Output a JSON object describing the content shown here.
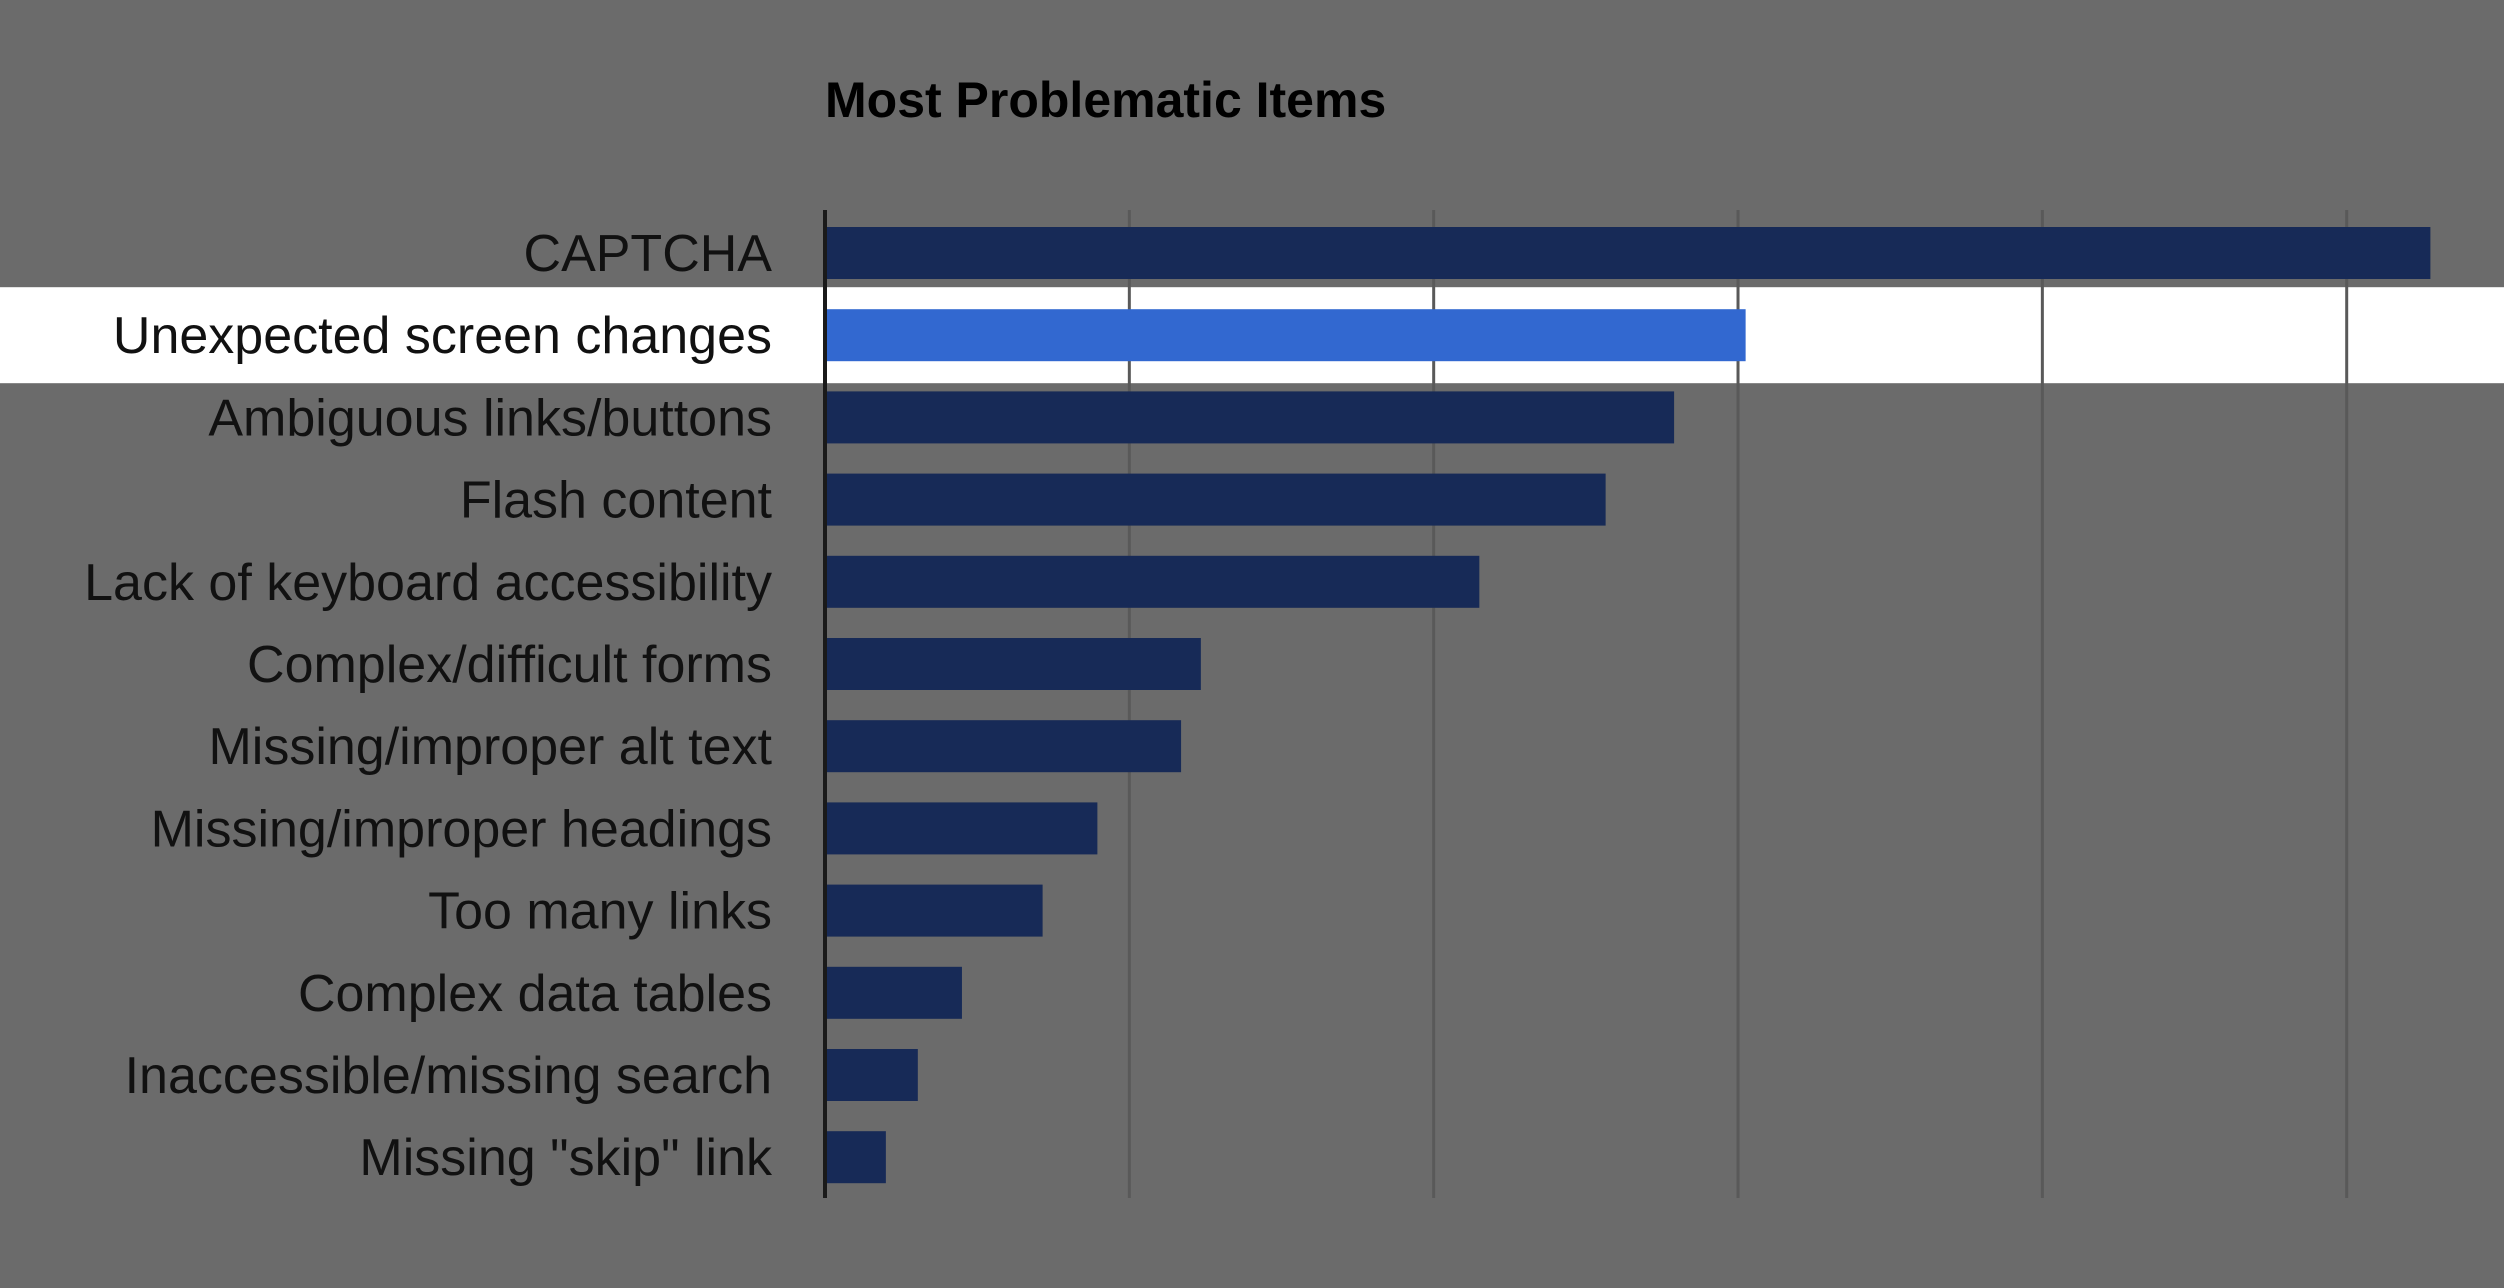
{
  "chart_data": {
    "type": "bar",
    "orientation": "horizontal",
    "title": "Most Problematic Items",
    "xlabel": "",
    "ylabel": "",
    "grid": true,
    "legend": "none",
    "xlim": [
      0,
      1050
    ],
    "categories": [
      "CAPTCHA",
      "Unexpected screen changes",
      "Ambiguous links/buttons",
      "Flash content",
      "Lack of keyboard accessibility",
      "Complex/difficult forms",
      "Missing/improper alt text",
      "Missing/improper headings",
      "Too many links",
      "Complex data tables",
      "Inaccessible/missing search",
      "Missing \"skip\" link"
    ],
    "values": [
      1055,
      605,
      558,
      513,
      430,
      247,
      234,
      179,
      143,
      90,
      61,
      40
    ],
    "highlighted_index": 1,
    "colors": {
      "background": "#6b6b6b",
      "bar": "#172a57",
      "bar_highlight": "#3268d0",
      "highlight_band": "#ffffff",
      "gridline": "#595959",
      "axis": "#1a1a1a"
    }
  }
}
